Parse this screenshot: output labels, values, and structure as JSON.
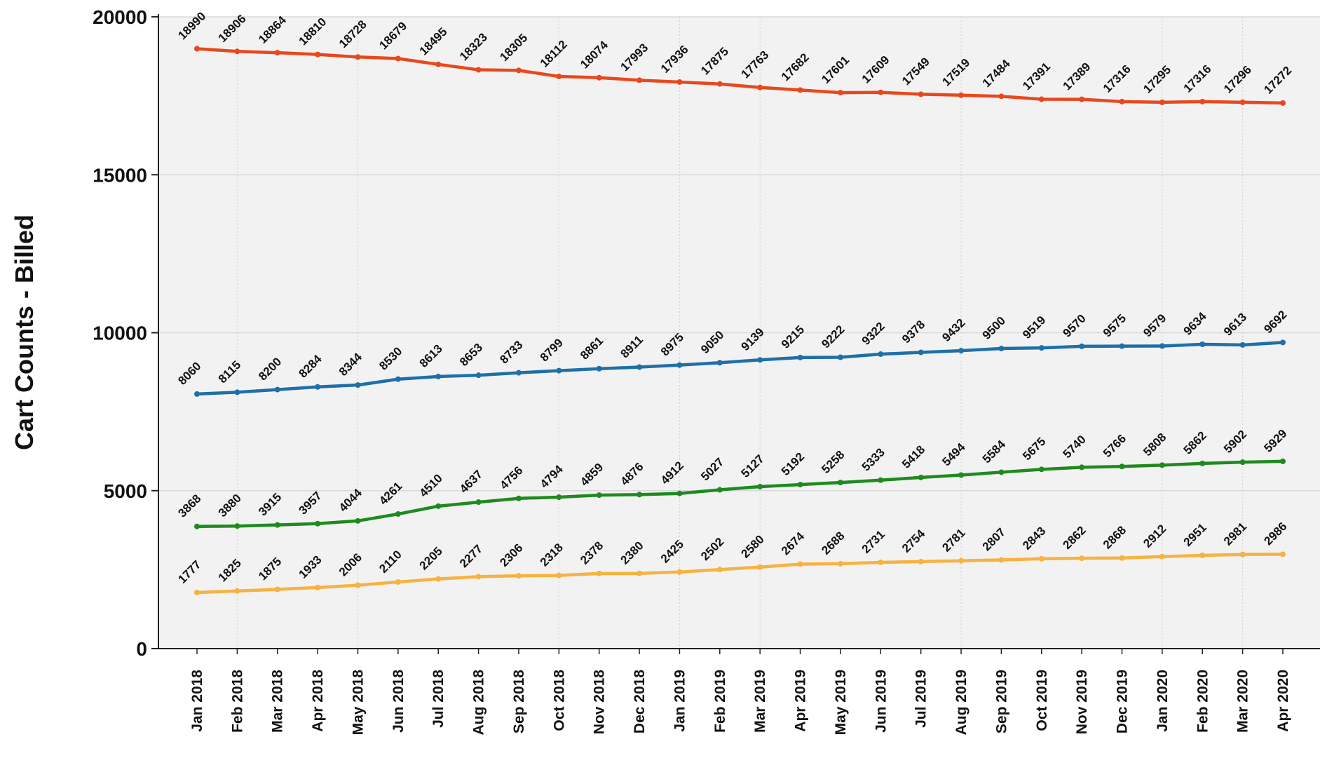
{
  "chart_data": {
    "type": "line",
    "ylabel": "Cart Counts - Billed",
    "xlabel": "",
    "ylim": [
      0,
      20000
    ],
    "yticks": [
      0,
      5000,
      10000,
      15000,
      20000
    ],
    "grid": true,
    "categories": [
      "Jan 2018",
      "Feb 2018",
      "Mar 2018",
      "Apr 2018",
      "May 2018",
      "Jun 2018",
      "Jul 2018",
      "Aug 2018",
      "Sep 2018",
      "Oct 2018",
      "Nov 2018",
      "Dec 2018",
      "Jan 2019",
      "Feb 2019",
      "Mar 2019",
      "Apr 2019",
      "May 2019",
      "Jun 2019",
      "Jul 2019",
      "Aug 2019",
      "Sep 2019",
      "Oct 2019",
      "Nov 2019",
      "Dec 2019",
      "Jan 2020",
      "Feb 2020",
      "Mar 2020",
      "Apr 2020"
    ],
    "series": [
      {
        "color": "#e8481c",
        "values": [
          18990,
          18906,
          18864,
          18810,
          18728,
          18679,
          18495,
          18323,
          18305,
          18112,
          18074,
          17993,
          17936,
          17875,
          17763,
          17682,
          17601,
          17609,
          17549,
          17519,
          17484,
          17391,
          17389,
          17316,
          17295,
          17316,
          17296,
          17272
        ]
      },
      {
        "color": "#1f6fa8",
        "values": [
          8060,
          8115,
          8200,
          8284,
          8344,
          8530,
          8613,
          8653,
          8733,
          8799,
          8861,
          8911,
          8975,
          9050,
          9139,
          9215,
          9222,
          9322,
          9378,
          9432,
          9500,
          9519,
          9570,
          9575,
          9579,
          9634,
          9613,
          9692
        ]
      },
      {
        "color": "#1f8a1f",
        "values": [
          3868,
          3880,
          3915,
          3957,
          4044,
          4261,
          4510,
          4637,
          4756,
          4794,
          4859,
          4876,
          4912,
          5027,
          5127,
          5192,
          5258,
          5333,
          5418,
          5494,
          5584,
          5675,
          5740,
          5766,
          5808,
          5862,
          5902,
          5929
        ]
      },
      {
        "color": "#f7b240",
        "values": [
          1777,
          1825,
          1875,
          1933,
          2006,
          2110,
          2205,
          2277,
          2306,
          2318,
          2378,
          2380,
          2425,
          2502,
          2580,
          2674,
          2688,
          2731,
          2754,
          2781,
          2807,
          2843,
          2862,
          2868,
          2912,
          2951,
          2981,
          2986
        ]
      }
    ],
    "colors": {
      "plot_background": "#f2f2f2",
      "grid": "#d9d9d9",
      "axis": "#222222"
    }
  }
}
